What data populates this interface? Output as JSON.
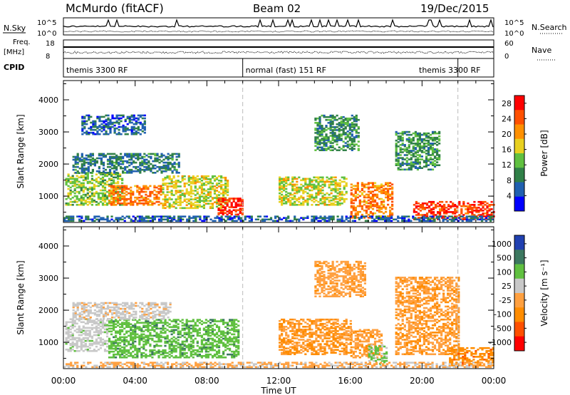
{
  "header": {
    "station": "McMurdo (fitACF)",
    "beam": "Beam 02",
    "date": "19/Dec/2015"
  },
  "summary_panels": {
    "nsky_label": "N.Sky",
    "nsearch_label": "N.Search",
    "noise_ticks_left": [
      "10^5",
      "10^0"
    ],
    "noise_ticks_right": [
      "10^5",
      "10^0"
    ],
    "freq_label_top": "Freq.",
    "freq_label_unit": "[MHz]",
    "freq_ticks": [
      "18",
      "8"
    ],
    "nave_label": "Nave",
    "nave_ticks": [
      "60",
      "0"
    ],
    "cpid_label": "CPID",
    "cpid_segments": [
      {
        "label": "themis 3300 RF",
        "start_hour": 0,
        "end_hour": 10
      },
      {
        "label": "normal (fast) 151 RF",
        "start_hour": 10,
        "end_hour": 22
      },
      {
        "label": "themis 3300 RF",
        "start_hour": 22,
        "end_hour": 24
      }
    ]
  },
  "chart_data": [
    {
      "type": "heatmap",
      "title": "",
      "ylabel": "Slant Range [km]",
      "xlabel": "",
      "xlim_hours": [
        0,
        24
      ],
      "ylim": [
        180,
        4600
      ],
      "yticks": [
        "1000",
        "2000",
        "3000",
        "4000"
      ],
      "colorbar_label": "Power [dB]",
      "colorbar_ticks": [
        "4",
        "8",
        "12",
        "16",
        "20",
        "24",
        "28"
      ],
      "colorbar_range": [
        0,
        30
      ],
      "colors": [
        "#0000ff",
        "#2060b0",
        "#308048",
        "#60c040",
        "#e8d020",
        "#ff9000",
        "#ff5000",
        "#ff0000"
      ],
      "echo_regions": [
        {
          "t0": 0.1,
          "t1": 3.3,
          "r0": 700,
          "r1": 1700,
          "value": 14
        },
        {
          "t0": 2.5,
          "t1": 5.5,
          "r0": 700,
          "r1": 1300,
          "value": 22
        },
        {
          "t0": 5.5,
          "t1": 9.2,
          "r0": 600,
          "r1": 1600,
          "value": 16
        },
        {
          "t0": 8.6,
          "t1": 10.0,
          "r0": 400,
          "r1": 900,
          "value": 26
        },
        {
          "t0": 0.5,
          "t1": 6.5,
          "r0": 1700,
          "r1": 2300,
          "value": 8
        },
        {
          "t0": 1.0,
          "t1": 4.5,
          "r0": 2900,
          "r1": 3500,
          "value": 6
        },
        {
          "t0": 12.0,
          "t1": 15.8,
          "r0": 700,
          "r1": 1600,
          "value": 16
        },
        {
          "t0": 14.0,
          "t1": 16.5,
          "r0": 2400,
          "r1": 3500,
          "value": 10
        },
        {
          "t0": 16.0,
          "t1": 18.4,
          "r0": 300,
          "r1": 1400,
          "value": 22
        },
        {
          "t0": 18.5,
          "t1": 21.0,
          "r0": 1800,
          "r1": 3000,
          "value": 10
        },
        {
          "t0": 19.5,
          "t1": 24.0,
          "r0": 250,
          "r1": 800,
          "value": 26
        },
        {
          "t0": 0.0,
          "t1": 24.0,
          "r0": 200,
          "r1": 380,
          "value": 6
        }
      ]
    },
    {
      "type": "heatmap",
      "title": "",
      "ylabel": "Slant Range [km]",
      "xlabel": "Time UT",
      "xlim_hours": [
        0,
        24
      ],
      "ylim": [
        180,
        4600
      ],
      "xticks": [
        "00:00",
        "04:00",
        "08:00",
        "12:00",
        "16:00",
        "20:00",
        "00:00"
      ],
      "yticks": [
        "1000",
        "2000",
        "3000",
        "4000"
      ],
      "colorbar_label": "Velocity [m s⁻¹]",
      "colorbar_ticks": [
        "1000",
        "500",
        "100",
        "25",
        "-25",
        "-100",
        "-500",
        "-1000"
      ],
      "colorbar_range": [
        -1000,
        1000
      ],
      "colors": [
        "#2040b0",
        "#3c7860",
        "#60c040",
        "#c8c8c8",
        "#ffa040",
        "#ff8c00",
        "#ff5000",
        "#ff0000"
      ],
      "echo_regions": [
        {
          "t0": 0.1,
          "t1": 2.5,
          "r0": 700,
          "r1": 1700,
          "value": 150
        },
        {
          "t0": 2.5,
          "t1": 9.8,
          "r0": 500,
          "r1": 1700,
          "value": 400
        },
        {
          "t0": 0.5,
          "t1": 6.0,
          "r0": 1700,
          "r1": 2200,
          "value": 80
        },
        {
          "t0": 12.0,
          "t1": 16.0,
          "r0": 600,
          "r1": 1700,
          "value": -250
        },
        {
          "t0": 14.0,
          "t1": 16.8,
          "r0": 2400,
          "r1": 3500,
          "value": -150
        },
        {
          "t0": 16.0,
          "t1": 17.8,
          "r0": 500,
          "r1": 1400,
          "value": -200
        },
        {
          "t0": 17.0,
          "t1": 18.0,
          "r0": 300,
          "r1": 900,
          "value": 300
        },
        {
          "t0": 18.5,
          "t1": 22.0,
          "r0": 600,
          "r1": 3000,
          "value": -200
        },
        {
          "t0": 21.5,
          "t1": 24.0,
          "r0": 250,
          "r1": 800,
          "value": -400
        },
        {
          "t0": 0.0,
          "t1": 24.0,
          "r0": 200,
          "r1": 380,
          "value": -40
        }
      ]
    }
  ]
}
